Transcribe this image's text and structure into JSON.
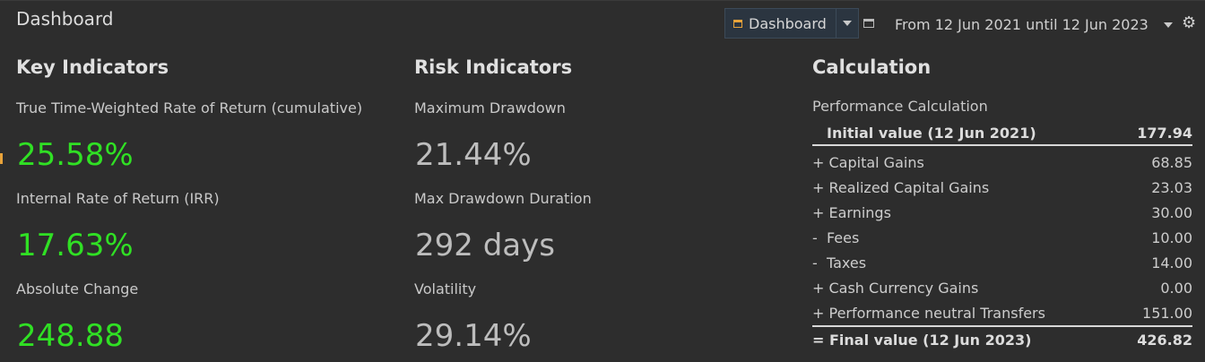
{
  "header": {
    "title": "Dashboard",
    "dashboard_button": "Dashboard",
    "date_range": "From 12 Jun 2021 until 12 Jun 2023"
  },
  "key_indicators": {
    "title": "Key Indicators",
    "items": [
      {
        "label": "True Time-Weighted Rate of Return (cumulative)",
        "value": "25.58%"
      },
      {
        "label": "Internal Rate of Return (IRR)",
        "value": "17.63%"
      },
      {
        "label": "Absolute Change",
        "value": "248.88"
      }
    ]
  },
  "risk_indicators": {
    "title": "Risk Indicators",
    "items": [
      {
        "label": "Maximum Drawdown",
        "value": "21.44%"
      },
      {
        "label": "Max Drawdown Duration",
        "value": "292 days"
      },
      {
        "label": "Volatility",
        "value": "29.14%"
      }
    ]
  },
  "calculation": {
    "title": "Calculation",
    "subtitle": "Performance Calculation",
    "initial": {
      "label": "Initial value (12 Jun 2021)",
      "value": "177.94"
    },
    "rows": [
      {
        "label": "+ Capital Gains",
        "value": "68.85"
      },
      {
        "label": "+ Realized Capital Gains",
        "value": "23.03"
      },
      {
        "label": "+ Earnings",
        "value": "30.00"
      },
      {
        "label": "-  Fees",
        "value": "10.00"
      },
      {
        "label": "-  Taxes",
        "value": "14.00"
      },
      {
        "label": "+ Cash Currency Gains",
        "value": "0.00"
      },
      {
        "label": "+ Performance neutral Transfers",
        "value": "151.00"
      }
    ],
    "final": {
      "label": "= Final value (12 Jun 2023)",
      "value": "426.82"
    }
  },
  "colors": {
    "positive": "#30e024",
    "neutral": "#bdbdbd",
    "accent": "#e8a33a"
  },
  "icons": {
    "dashboard_button": "calendar-icon",
    "dropdown": "chevron-down-icon",
    "window": "window-icon",
    "settings": "gear-icon"
  }
}
